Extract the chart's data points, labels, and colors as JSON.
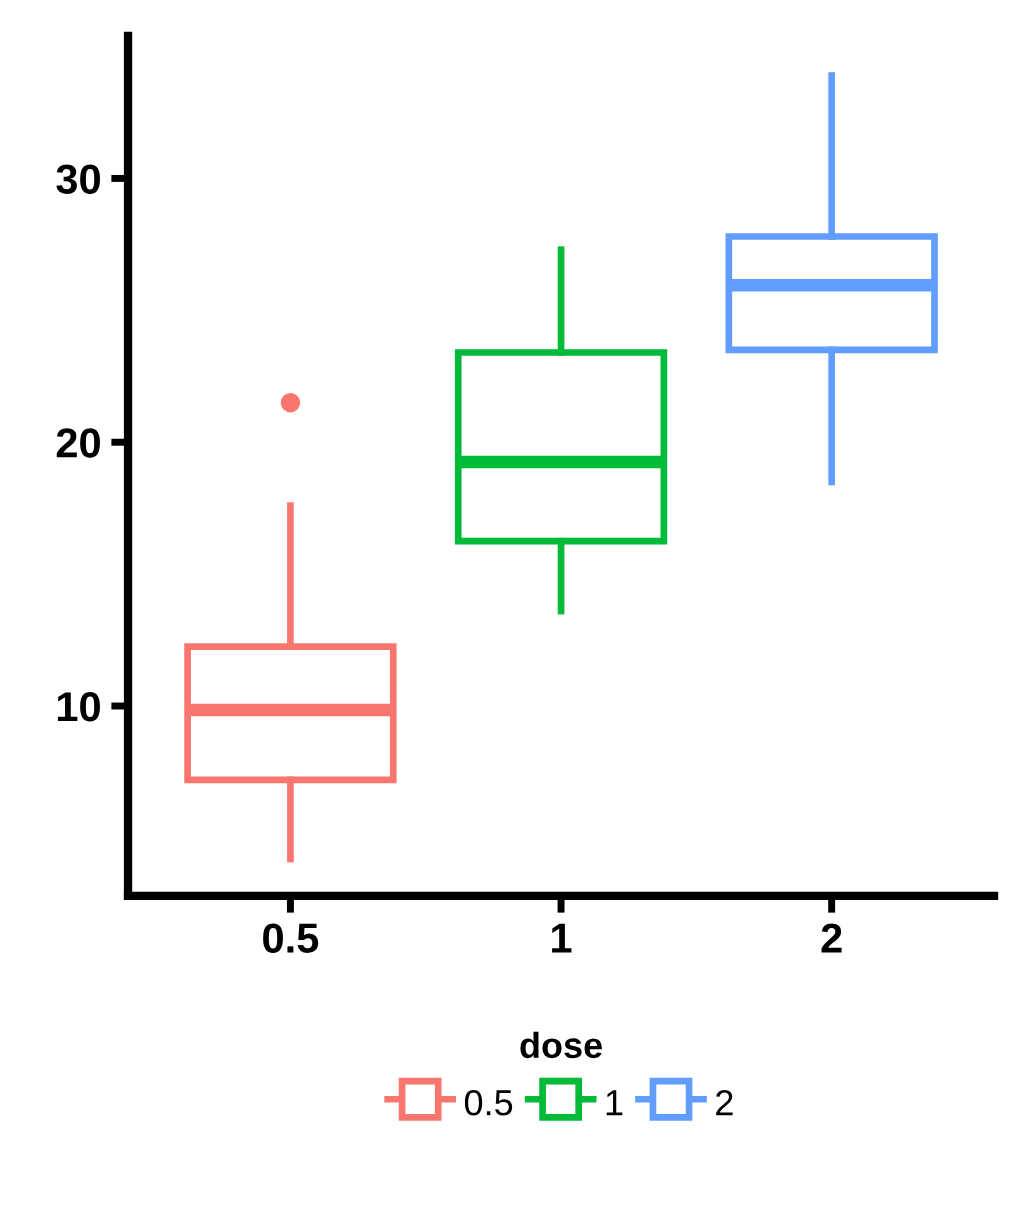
{
  "chart_data": {
    "type": "box",
    "categories": [
      "0.5",
      "1",
      "2"
    ],
    "series": [
      {
        "name": "0.5",
        "color": "#f8766d",
        "boxes": [
          {
            "low": 4.2,
            "q1": 7.2,
            "median": 9.85,
            "q3": 12.25,
            "high": 17.6,
            "outliers": [
              21.5
            ]
          },
          null,
          null
        ]
      },
      {
        "name": "1",
        "color": "#00ba38",
        "boxes": [
          null,
          {
            "low": 13.6,
            "q1": 16.25,
            "median": 19.25,
            "q3": 23.4,
            "high": 27.3
          },
          null
        ]
      },
      {
        "name": "2",
        "color": "#619cff",
        "boxes": [
          null,
          null,
          {
            "low": 18.5,
            "q1": 23.5,
            "median": 25.95,
            "q3": 27.8,
            "high": 33.9
          }
        ]
      }
    ],
    "ylim": [
      2.8,
      35.4
    ],
    "yticks": [
      10,
      20,
      30
    ],
    "legend_title": "dose",
    "legend": "bottom",
    "grid": false
  }
}
